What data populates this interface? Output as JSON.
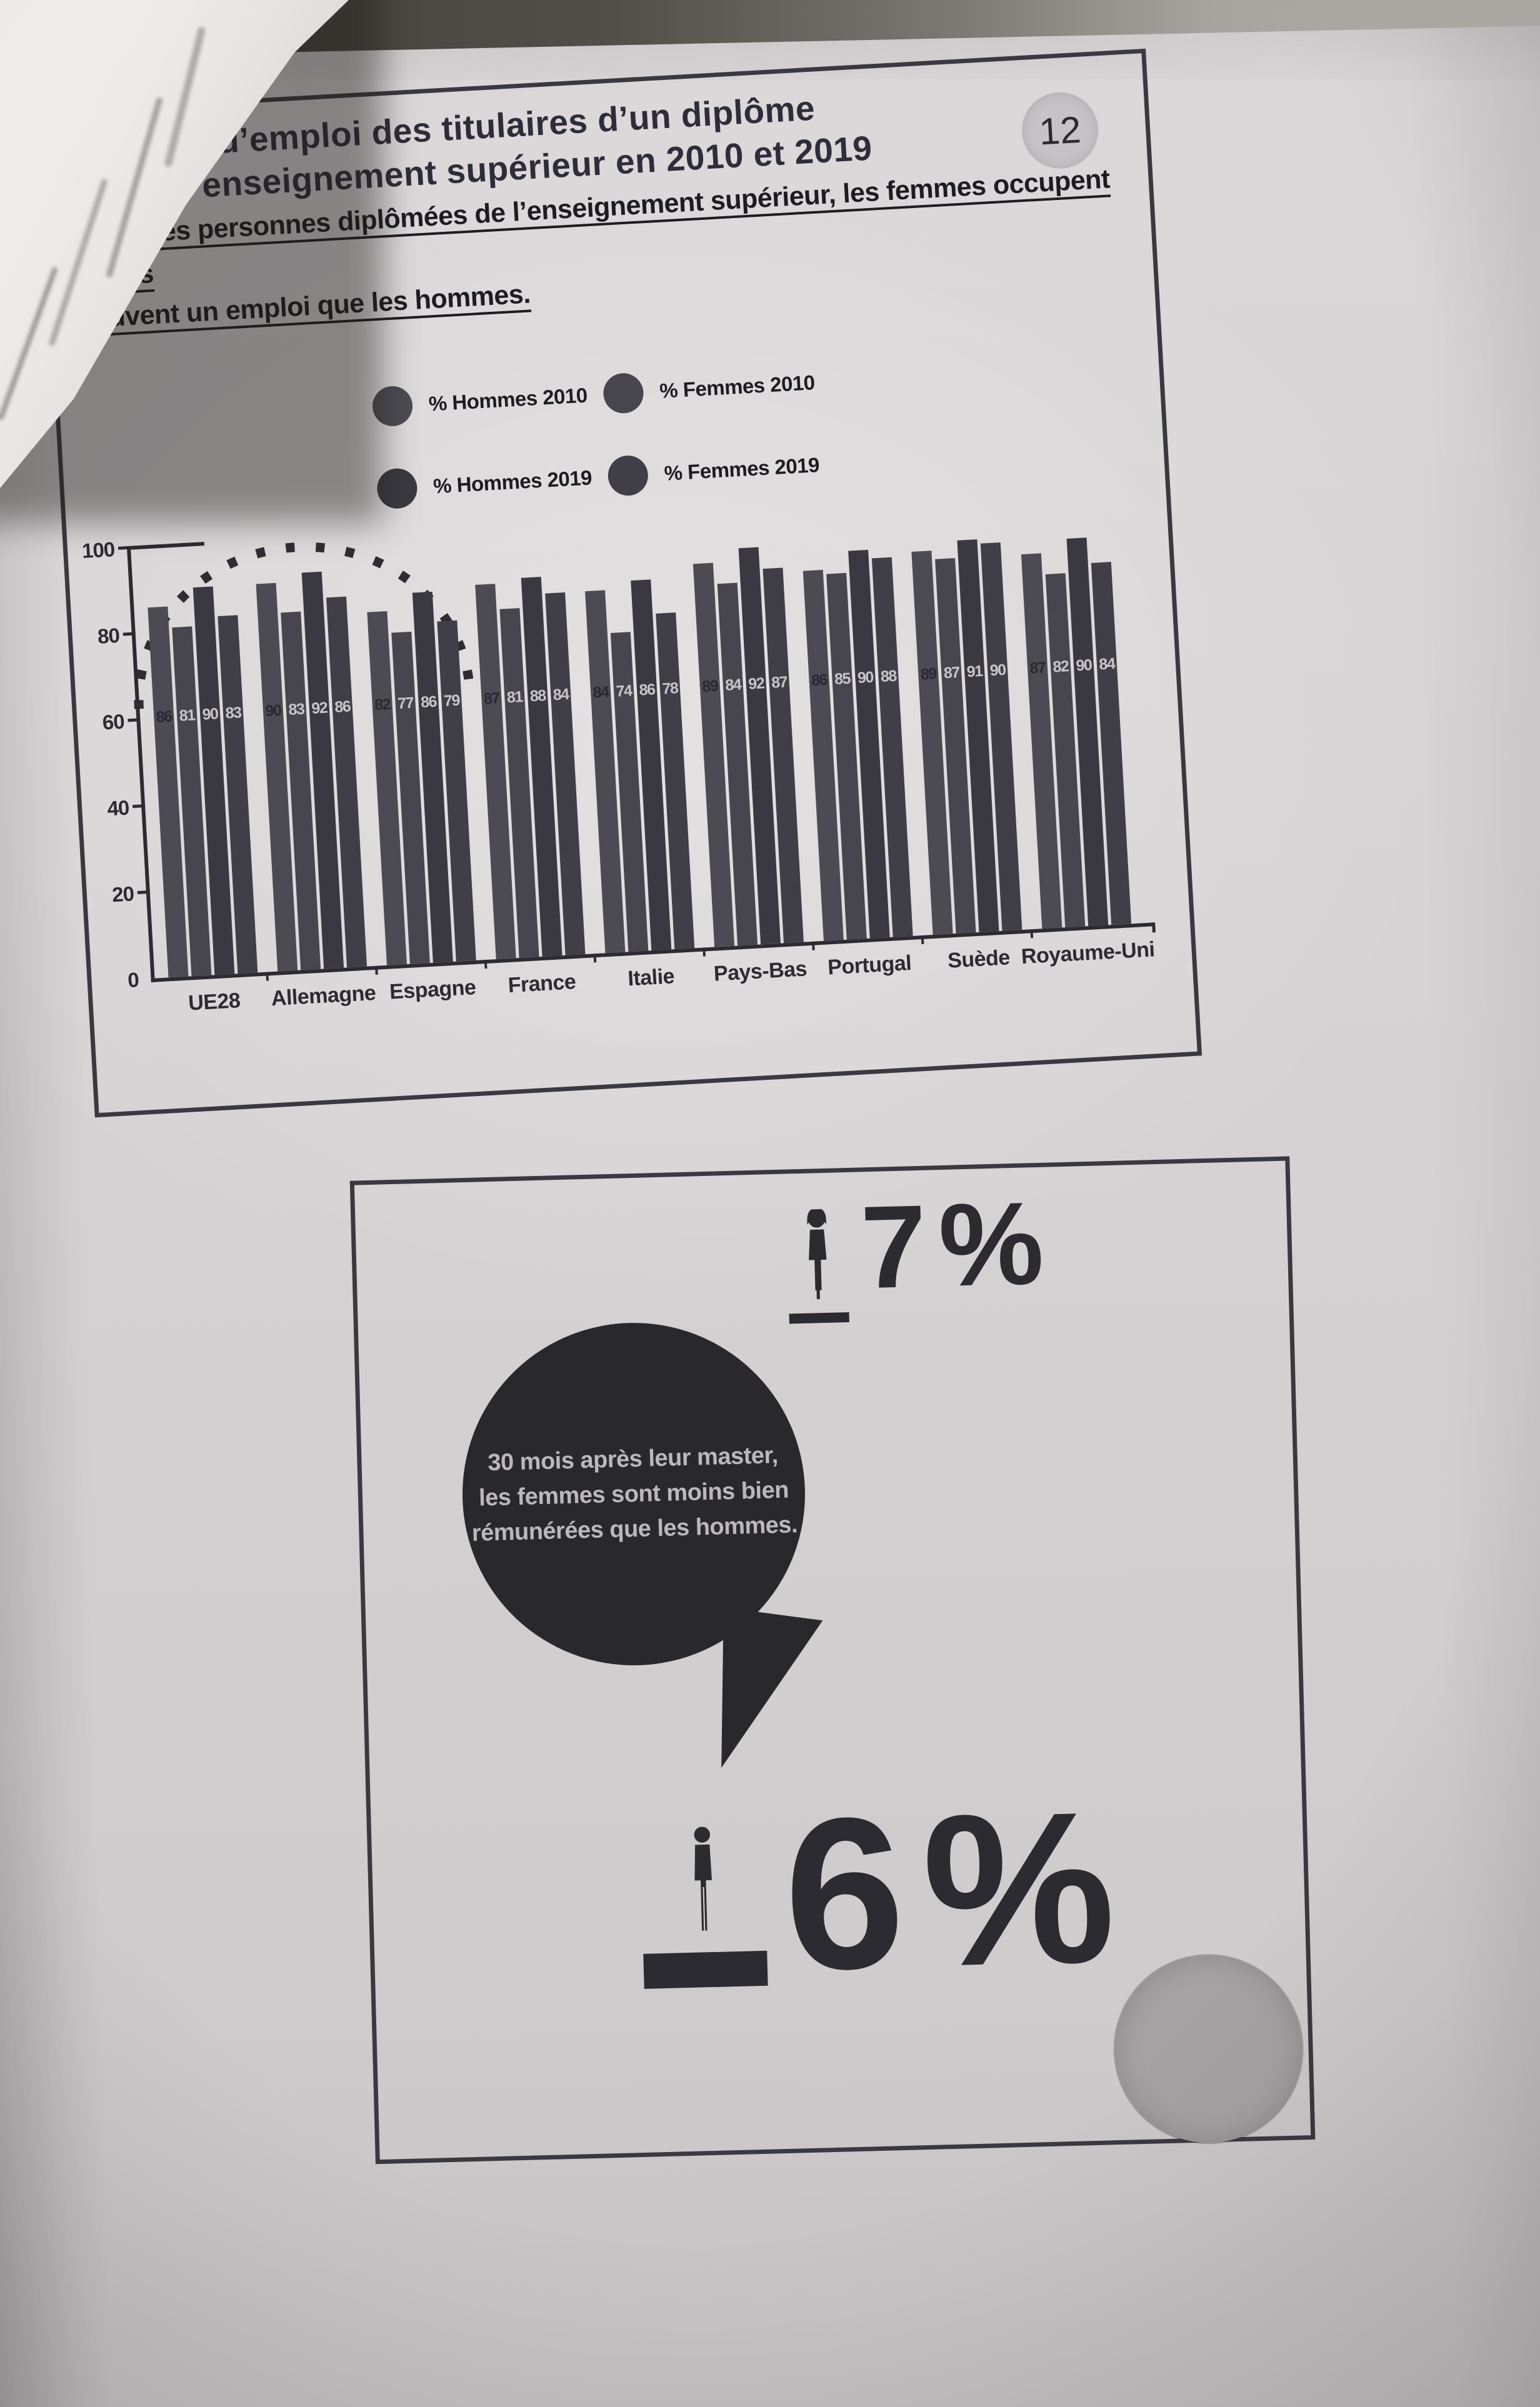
{
  "colors": {
    "ink": "#2c2b31",
    "bubble": "#29282d",
    "bubble_text": "#bab8bd",
    "circle_gray": "#a5a2a4",
    "page_badge": "#c6c3c6"
  },
  "header": {
    "page_number": "12",
    "title_line1": "Taux d’emploi des titulaires d’un diplôme",
    "title_line2": "de l’enseignement supérieur en 2010 et 2019",
    "subtitle_line1": "Parmi les personnes diplômées de l’enseignement supérieur, les femmes occupent moins",
    "subtitle_line2": "souvent un emploi que les hommes."
  },
  "chart_data": {
    "type": "bar",
    "title": "Taux d’emploi des titulaires d’un diplôme de l’enseignement supérieur en 2010 et 2019",
    "categories": [
      "UE28",
      "Allemagne",
      "Espagne",
      "France",
      "Italie",
      "Pays-Bas",
      "Portugal",
      "Suède",
      "Royaume-Uni"
    ],
    "series": [
      {
        "name": "% Hommes 2010",
        "color": "#4c4b53",
        "label_color": "#2a2930",
        "values": [
          86,
          90,
          82,
          87,
          84,
          89,
          86,
          89,
          87
        ]
      },
      {
        "name": "% Femmes 2010",
        "color": "#47464e",
        "label_color": "#c7c5c9",
        "values": [
          81,
          83,
          77,
          81,
          74,
          84,
          85,
          87,
          82
        ]
      },
      {
        "name": "% Hommes 2019",
        "color": "#3a3941",
        "label_color": "#c7c5c9",
        "values": [
          90,
          92,
          86,
          88,
          86,
          92,
          90,
          91,
          90
        ]
      },
      {
        "name": "% Femmes 2019",
        "color": "#403f47",
        "label_color": "#c7c5c9",
        "values": [
          83,
          86,
          79,
          84,
          78,
          87,
          88,
          90,
          84
        ]
      }
    ],
    "ylim": [
      0,
      100
    ],
    "yticks": [
      0,
      20,
      40,
      60,
      80,
      100
    ],
    "grid": false,
    "legend_position": "top",
    "bar_group_order": [
      "% Hommes 2010",
      "% Femmes 2010",
      "% Hommes 2019",
      "% Femmes 2019"
    ]
  },
  "infographic": {
    "women_stat": {
      "value": "-7 %",
      "digit": "7",
      "percent": "%"
    },
    "bubble": {
      "line1": "30 mois après leur master,",
      "line2": "les femmes sont moins bien",
      "line3": "rémunérées que les hommes."
    },
    "men_stat": {
      "value": "-6 %",
      "digit": "6",
      "percent": "%"
    }
  }
}
